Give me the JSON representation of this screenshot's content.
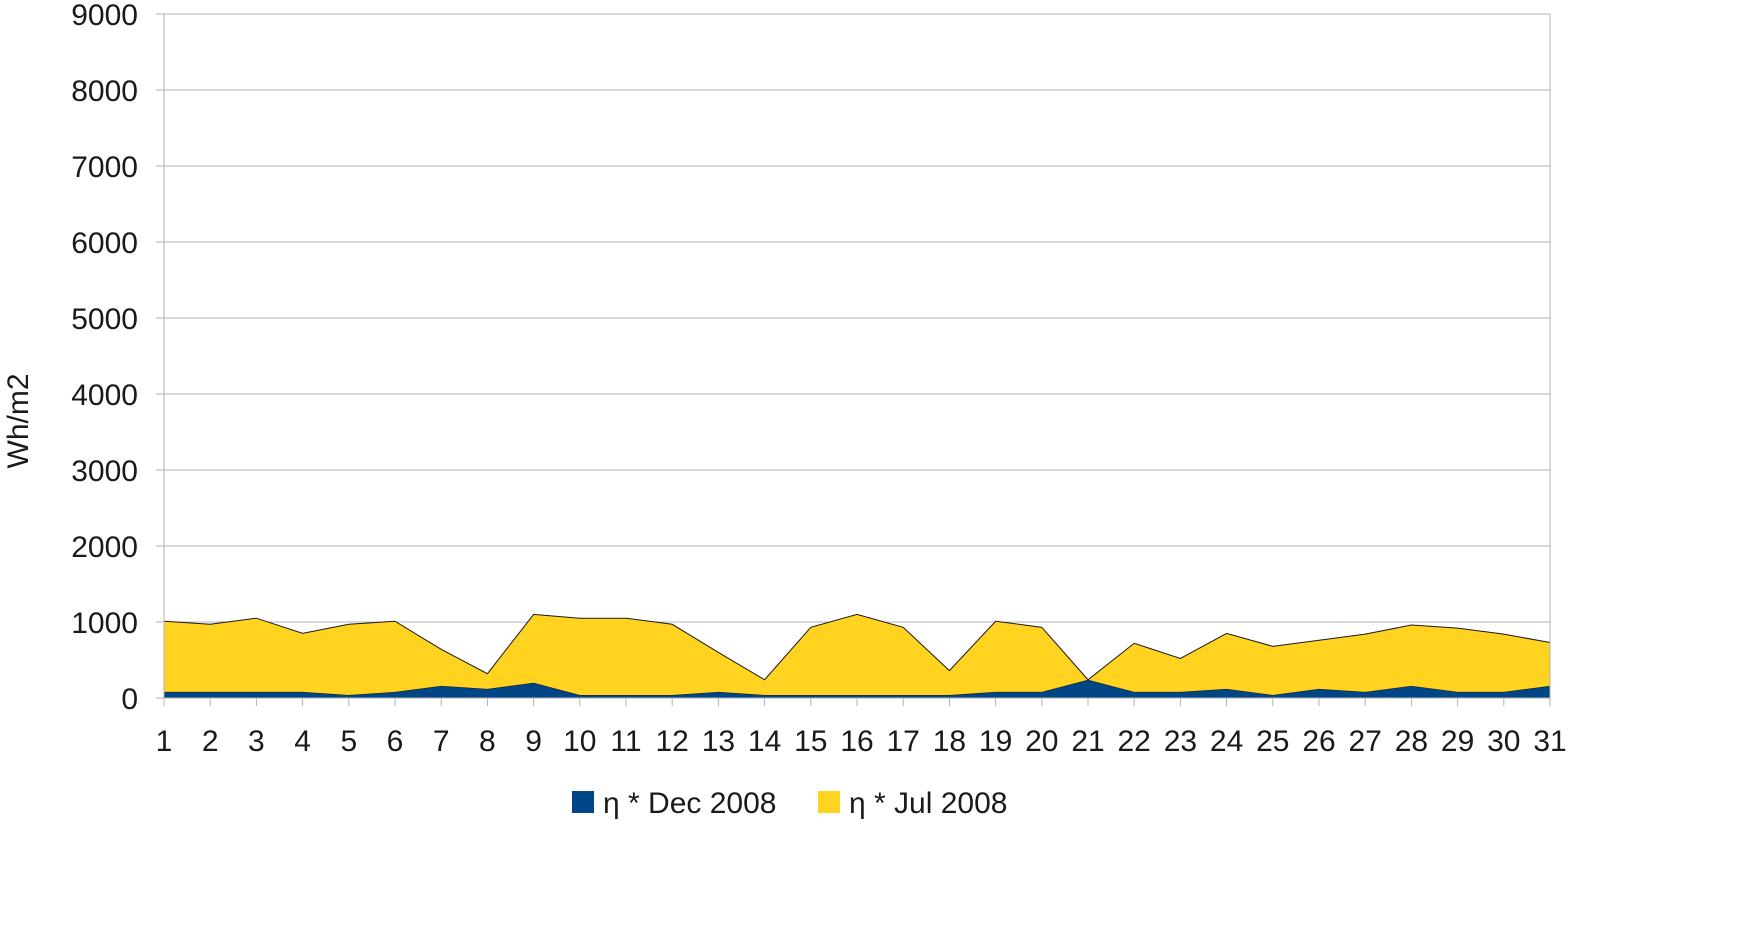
{
  "chart_data": {
    "type": "area",
    "stacked": true,
    "title": "",
    "xlabel": "",
    "ylabel": "Wh/m2",
    "ylim": [
      0,
      9000
    ],
    "yticks": [
      0,
      1000,
      2000,
      3000,
      4000,
      5000,
      6000,
      7000,
      8000,
      9000
    ],
    "grid": true,
    "legend_position": "bottom",
    "x": [
      "1",
      "2",
      "3",
      "4",
      "5",
      "6",
      "7",
      "8",
      "9",
      "10",
      "11",
      "12",
      "13",
      "14",
      "15",
      "16",
      "17",
      "18",
      "19",
      "20",
      "21",
      "22",
      "23",
      "24",
      "25",
      "26",
      "27",
      "28",
      "29",
      "30",
      "31"
    ],
    "series": [
      {
        "name": "η * Dec 2008",
        "color": "#004586",
        "values": [
          80,
          80,
          80,
          80,
          40,
          80,
          160,
          120,
          200,
          40,
          40,
          40,
          80,
          40,
          40,
          40,
          40,
          40,
          80,
          80,
          240,
          80,
          80,
          120,
          40,
          120,
          80,
          160,
          80,
          80,
          160
        ]
      },
      {
        "name": "η * Jul 2008",
        "color": "#ffd320",
        "values": [
          930,
          890,
          970,
          770,
          930,
          930,
          480,
          200,
          900,
          1010,
          1010,
          930,
          520,
          200,
          890,
          1060,
          890,
          320,
          930,
          850,
          0,
          640,
          440,
          730,
          640,
          640,
          760,
          800,
          840,
          760,
          570
        ]
      }
    ]
  }
}
